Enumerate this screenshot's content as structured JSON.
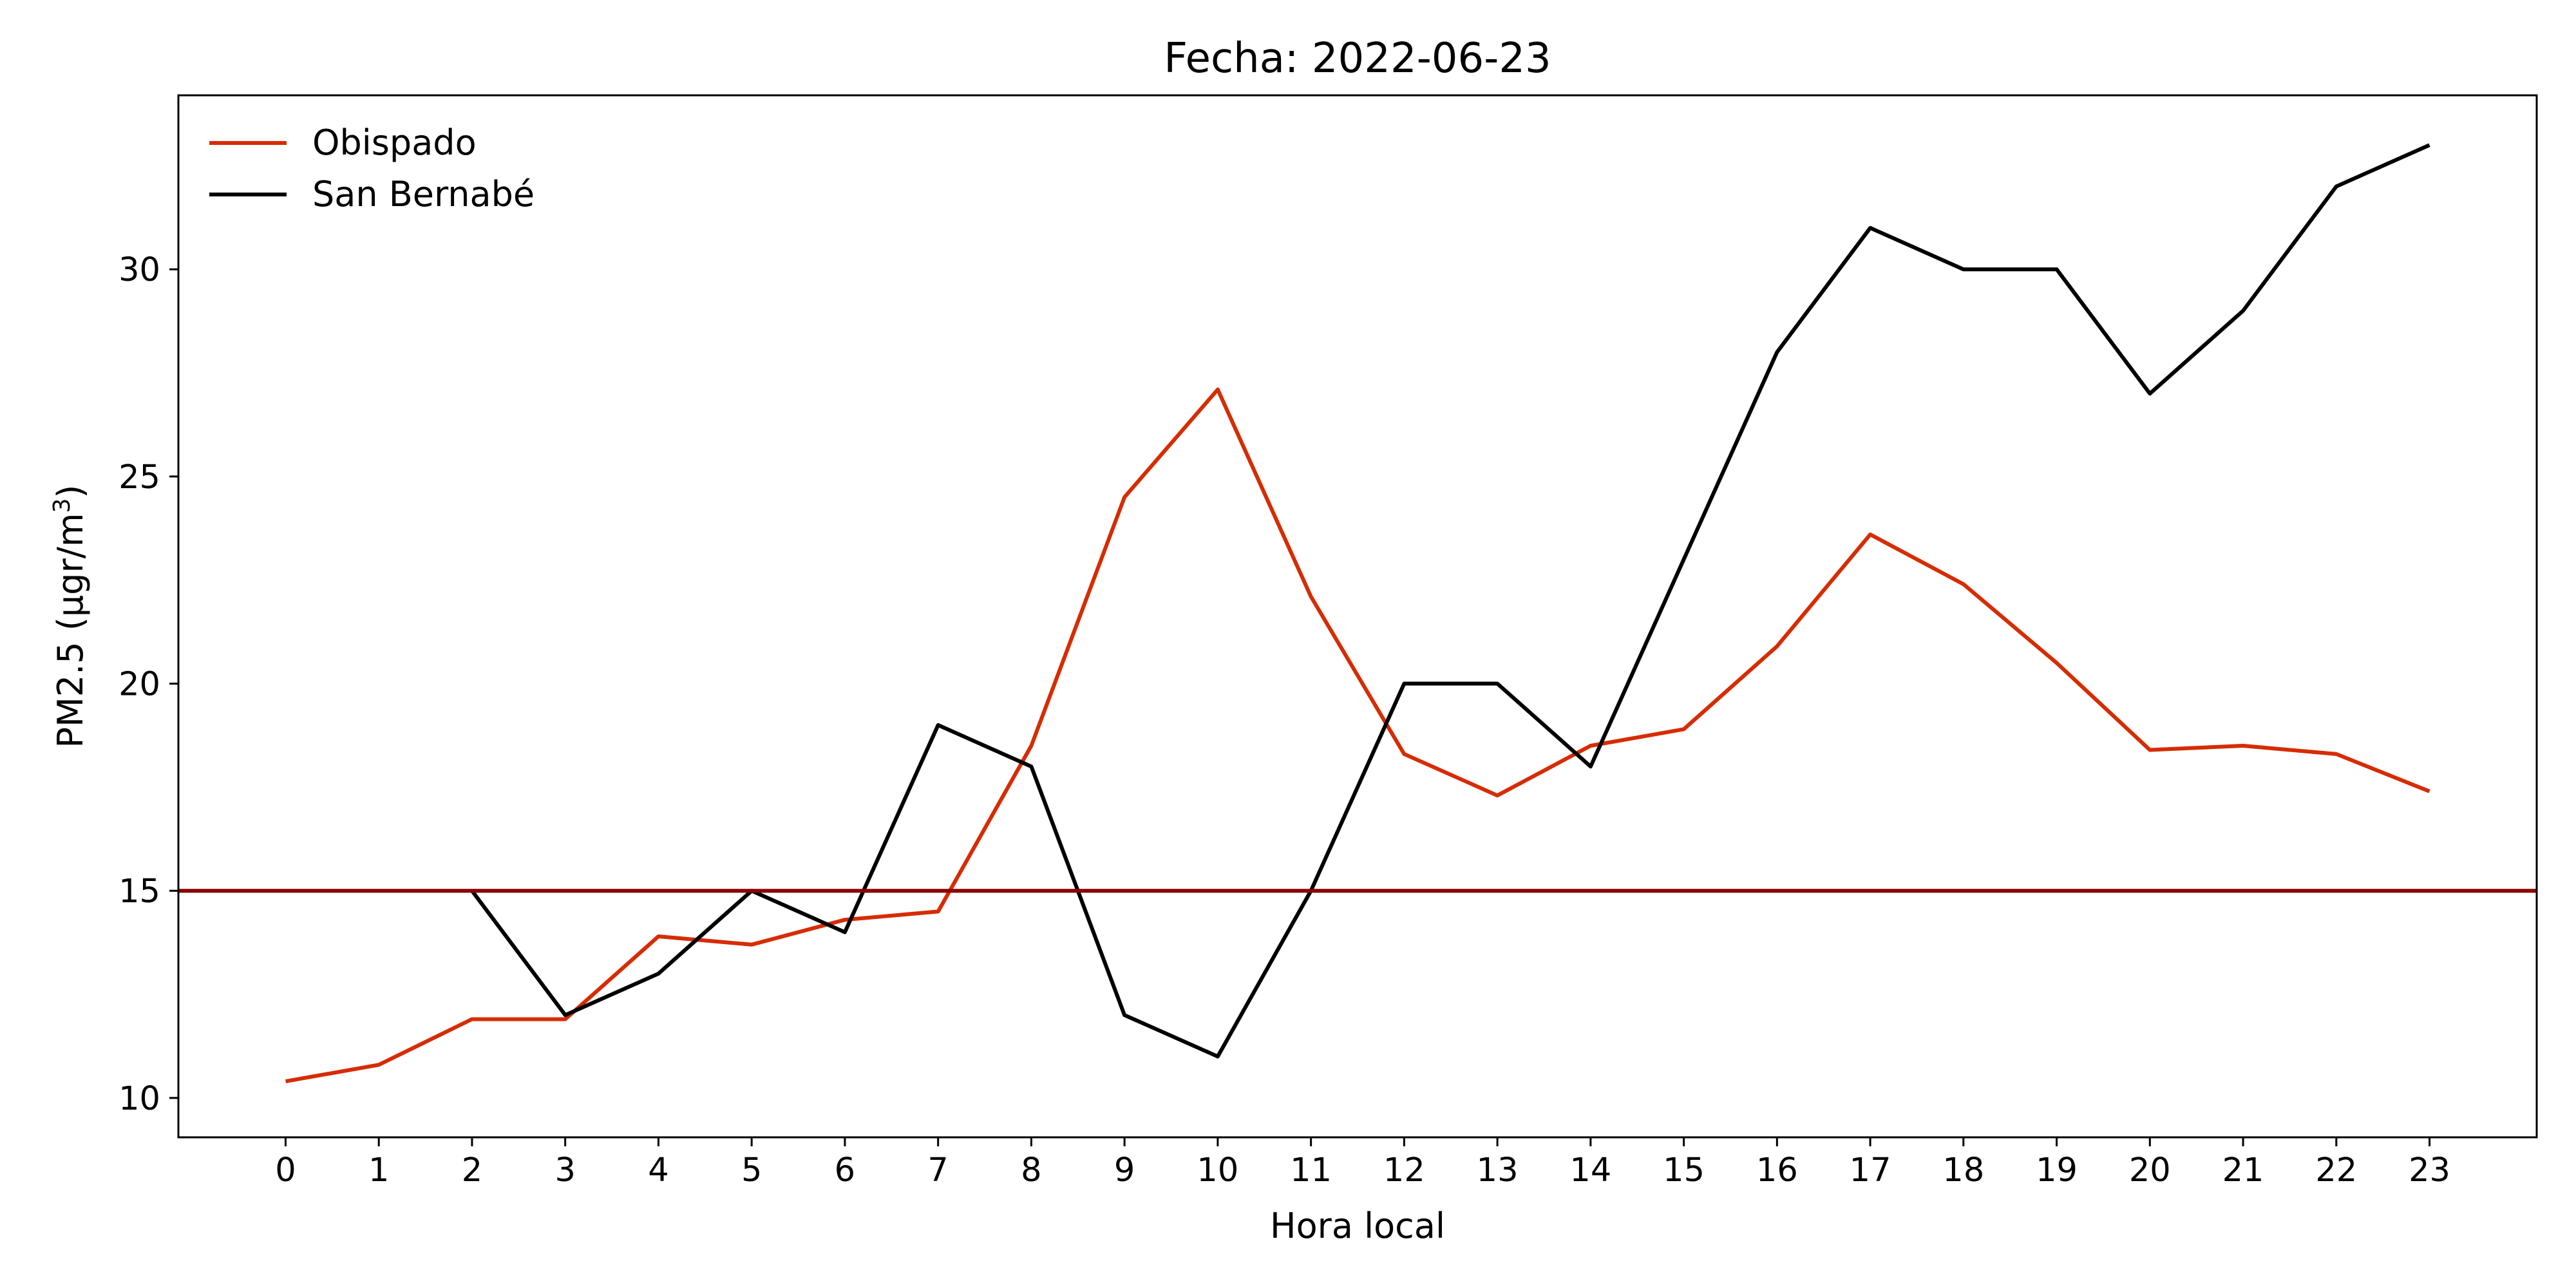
{
  "chart_data": {
    "type": "line",
    "title": "Fecha: 2022-06-23",
    "xlabel": "Hora local",
    "ylabel_main": "PM2.5 (μgr/m",
    "ylabel_sup": "3",
    "ylabel_close": ")",
    "x": [
      0,
      1,
      2,
      3,
      4,
      5,
      6,
      7,
      8,
      9,
      10,
      11,
      12,
      13,
      14,
      15,
      16,
      17,
      18,
      19,
      20,
      21,
      22,
      23
    ],
    "xticks": [
      "0",
      "1",
      "2",
      "3",
      "4",
      "5",
      "6",
      "7",
      "8",
      "9",
      "10",
      "11",
      "12",
      "13",
      "14",
      "15",
      "16",
      "17",
      "18",
      "19",
      "20",
      "21",
      "22",
      "23"
    ],
    "yticks": [
      10,
      15,
      20,
      25,
      30
    ],
    "ytick_labels": [
      "10",
      "15",
      "20",
      "25",
      "30"
    ],
    "xlim": [
      -1.15,
      24.15
    ],
    "ylim": [
      9.05,
      34.2
    ],
    "series": [
      {
        "name": "Obispado",
        "color": "#d62c00",
        "values": [
          10.4,
          10.8,
          11.9,
          11.9,
          13.9,
          13.7,
          14.3,
          14.5,
          18.5,
          24.5,
          27.1,
          22.1,
          18.3,
          17.3,
          18.5,
          18.9,
          20.9,
          23.6,
          22.4,
          20.5,
          18.4,
          18.5,
          18.3,
          17.4
        ]
      },
      {
        "name": "San Bernabé",
        "color": "#000000",
        "values": [
          null,
          null,
          15,
          12,
          13,
          15,
          14,
          19,
          18,
          12,
          11,
          15,
          20,
          20,
          18,
          23,
          28,
          31,
          30,
          30,
          27,
          29,
          32,
          33
        ]
      }
    ],
    "hline": {
      "y": 15,
      "color": "#8b0000"
    },
    "legend_position": "top-left",
    "grid": false
  }
}
